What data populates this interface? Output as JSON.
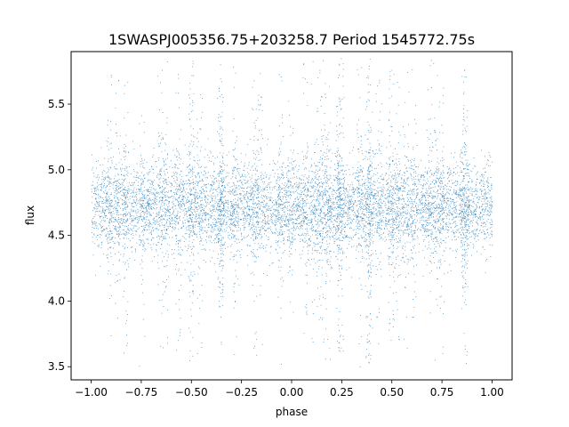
{
  "chart_data": {
    "type": "scatter",
    "title": "1SWASPJ005356.75+203258.7 Period 1545772.75s",
    "xlabel": "phase",
    "ylabel": "flux",
    "xlim": [
      -1.1,
      1.1
    ],
    "ylim": [
      3.4,
      5.9
    ],
    "x_ticks": [
      -1.0,
      -0.75,
      -0.5,
      -0.25,
      0.0,
      0.25,
      0.5,
      0.75,
      1.0
    ],
    "x_tick_labels": [
      "−1.00",
      "−0.75",
      "−0.50",
      "−0.25",
      "0.00",
      "0.25",
      "0.50",
      "0.75",
      "1.00"
    ],
    "y_ticks": [
      3.5,
      4.0,
      4.5,
      5.0,
      5.5
    ],
    "y_tick_labels": [
      "3.5",
      "4.0",
      "4.5",
      "5.0",
      "5.5"
    ],
    "grid": false,
    "marker_color": "#1f77b4",
    "series_summary": {
      "x_range": [
        -1.0,
        1.0
      ],
      "median_flux": 4.72,
      "core_range": [
        4.3,
        5.1
      ],
      "outlier_range": [
        3.5,
        5.85
      ]
    }
  }
}
